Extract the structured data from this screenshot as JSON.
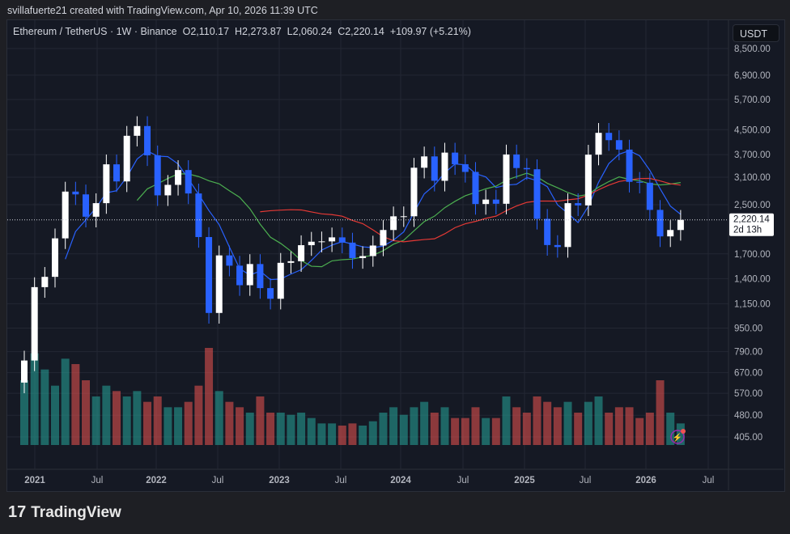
{
  "credit": "svillafuerte21 created with TradingView.com, Apr 10, 2026 11:39 UTC",
  "legend": {
    "symbol": "Ethereum / TetherUS · 1W · Binance",
    "open": "O2,110.17",
    "high": "H2,273.87",
    "low": "L2,060.24",
    "close": "C2,220.14",
    "change": "+109.97 (+5.21%)"
  },
  "price_axis": {
    "unit": "USDT",
    "ticks": [
      "8,500.00",
      "6,900.00",
      "5,700.00",
      "4,500.00",
      "3,700.00",
      "3,100.00",
      "2,500.00",
      "1,700.00",
      "1,400.00",
      "1,150.00",
      "950.00",
      "790.00",
      "670.00",
      "570.00",
      "480.00",
      "405.00"
    ],
    "last_price": "2,220.14",
    "countdown": "2d 13h"
  },
  "time_axis": {
    "ticks": [
      "2021",
      "Jul",
      "2022",
      "Jul",
      "2023",
      "Jul",
      "2024",
      "Jul",
      "2025",
      "Jul",
      "2026",
      "Jul"
    ]
  },
  "brand": "TradingView",
  "colors": {
    "up": "#ffffff",
    "down": "#2962ff",
    "ma_fast": "#2962ff",
    "ma_mid": "#4caf50",
    "ma_slow": "#e53935",
    "vol_up": "#26a69a",
    "vol_down": "#ef5350"
  },
  "chart_data": {
    "type": "candlestick",
    "scale": "log",
    "ylim": [
      405,
      8500
    ],
    "x_start": "2020-12",
    "x_step": "month",
    "closes": [
      737,
      1310,
      1420,
      1920,
      2770,
      2710,
      2275,
      2530,
      3430,
      3000,
      4290,
      4630,
      3680,
      2690,
      2920,
      3280,
      2730,
      1940,
      1070,
      1680,
      1550,
      1330,
      1570,
      1300,
      1196,
      1585,
      1605,
      1820,
      1870,
      1875,
      1935,
      1857,
      1645,
      1671,
      1815,
      2050,
      2282,
      2283,
      3340,
      3650,
      3015,
      3760,
      3433,
      3232,
      2513,
      2602,
      2518,
      3705,
      3332,
      3300,
      2237,
      1822,
      1794,
      2530,
      2486,
      3700,
      4390,
      4145,
      3850,
      2990,
      2970,
      2400,
      1950,
      2050,
      2220
    ],
    "volume": [
      60,
      85,
      70,
      55,
      80,
      75,
      60,
      45,
      55,
      50,
      45,
      50,
      40,
      45,
      35,
      35,
      40,
      55,
      90,
      50,
      40,
      35,
      30,
      45,
      30,
      30,
      28,
      30,
      25,
      20,
      20,
      18,
      20,
      18,
      22,
      30,
      35,
      28,
      35,
      40,
      30,
      35,
      25,
      25,
      35,
      25,
      25,
      45,
      35,
      30,
      45,
      40,
      35,
      40,
      30,
      40,
      45,
      30,
      35,
      35,
      25,
      30,
      60,
      30,
      20
    ]
  }
}
